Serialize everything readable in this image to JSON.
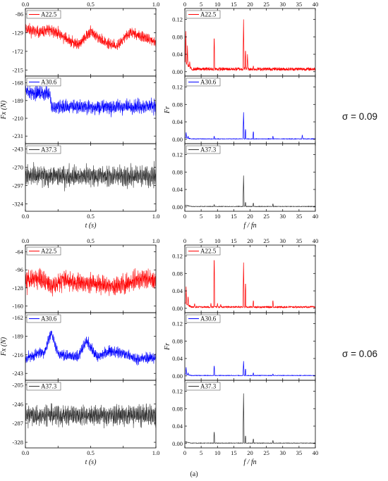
{
  "figure": {
    "caption": "(a)",
    "groups": [
      {
        "id": "g1",
        "sigma_label": "σ = 0.09"
      },
      {
        "id": "g2",
        "sigma_label": "σ = 0.06"
      }
    ]
  },
  "colors": {
    "A22.5": "#ff0000",
    "A30.6": "#0000ff",
    "A37.3": "#333333"
  },
  "chart_data": [
    {
      "type": "line",
      "group": "g1",
      "domain": "time",
      "series_name": "A22.5",
      "xlabel": "",
      "ylabel": "",
      "xlim": [
        0,
        1
      ],
      "ylim": [
        -229,
        -73
      ],
      "yticks": [
        "-86",
        "-129",
        "-172",
        "-215"
      ],
      "xticks_top": [
        "0.0",
        "0.5",
        "1.0"
      ],
      "mean_profile": {
        "x": [
          0,
          0.1,
          0.2,
          0.3,
          0.4,
          0.5,
          0.6,
          0.7,
          0.8,
          0.9,
          1.0
        ],
        "y": [
          -120,
          -128,
          -122,
          -140,
          -158,
          -126,
          -150,
          -162,
          -128,
          -138,
          -152
        ]
      },
      "band_halfwidth": 18
    },
    {
      "type": "line",
      "group": "g1",
      "domain": "time",
      "series_name": "A30.6",
      "xlabel": "",
      "ylabel": "Fx (N)",
      "xlim": [
        0,
        1
      ],
      "ylim": [
        -240,
        -160
      ],
      "yticks": [
        "-168",
        "-189",
        "-210",
        "-231"
      ],
      "mean_profile": {
        "x": [
          0,
          0.1,
          0.19,
          0.2,
          0.4,
          0.6,
          0.8,
          1.0
        ],
        "y": [
          -178,
          -180,
          -181,
          -197,
          -196,
          -197,
          -196,
          -195
        ]
      },
      "band_halfwidth": 12
    },
    {
      "type": "line",
      "group": "g1",
      "domain": "time",
      "series_name": "A37.3",
      "xlabel": "t (s)",
      "ylabel": "",
      "xlim": [
        0,
        1
      ],
      "ylim": [
        -335,
        -235
      ],
      "yticks": [
        "-243",
        "-270",
        "-297",
        "-324"
      ],
      "xticks_bottom": [
        "0.0",
        "0.5",
        "1.0"
      ],
      "mean_profile": {
        "x": [
          0,
          0.5,
          1.0
        ],
        "y": [
          -283,
          -283,
          -283
        ]
      },
      "band_halfwidth": 22
    },
    {
      "type": "line",
      "group": "g1",
      "domain": "frequency",
      "series_name": "A22.5",
      "xlabel": "",
      "ylabel": "",
      "xlim": [
        0,
        40
      ],
      "ylim": [
        -0.01,
        0.145
      ],
      "yticks": [
        "0.12",
        "0.08",
        "0.04",
        "0.00"
      ],
      "xticks_top": [
        "0",
        "5",
        "10",
        "15",
        "20",
        "25",
        "30",
        "35",
        "40"
      ],
      "base": 0.006,
      "peaks": [
        [
          0.3,
          0.1
        ],
        [
          0.8,
          0.06
        ],
        [
          1.5,
          0.025
        ],
        [
          9,
          0.088
        ],
        [
          18,
          0.12
        ],
        [
          18.6,
          0.055
        ],
        [
          19.2,
          0.04
        ],
        [
          21,
          0.015
        ],
        [
          27,
          0.01
        ]
      ]
    },
    {
      "type": "line",
      "group": "g1",
      "domain": "frequency",
      "series_name": "A30.6",
      "xlabel": "",
      "ylabel": "Fr",
      "xlim": [
        0,
        40
      ],
      "ylim": [
        -0.01,
        0.145
      ],
      "yticks": [
        "0.12",
        "0.08",
        "0.04",
        "0.00"
      ],
      "base": 0.001,
      "peaks": [
        [
          0.4,
          0.016
        ],
        [
          1,
          0.008
        ],
        [
          9,
          0.008
        ],
        [
          18,
          0.062
        ],
        [
          18.6,
          0.026
        ],
        [
          21,
          0.02
        ],
        [
          27,
          0.008
        ],
        [
          36,
          0.01
        ]
      ]
    },
    {
      "type": "line",
      "group": "g1",
      "domain": "frequency",
      "series_name": "A37.3",
      "xlabel": "f / fn",
      "ylabel": "",
      "xlim": [
        0,
        40
      ],
      "ylim": [
        -0.01,
        0.145
      ],
      "yticks": [
        "0.12",
        "0.08",
        "0.04",
        "0.00"
      ],
      "xticks_bottom": [
        "0",
        "5",
        "10",
        "15",
        "20",
        "25",
        "30",
        "35",
        "40"
      ],
      "base": 0.001,
      "peaks": [
        [
          9,
          0.006
        ],
        [
          18,
          0.072
        ],
        [
          18.6,
          0.012
        ],
        [
          21,
          0.01
        ],
        [
          27,
          0.008
        ]
      ]
    },
    {
      "type": "line",
      "group": "g2",
      "domain": "time",
      "series_name": "A22.5",
      "xlabel": "",
      "ylabel": "",
      "xlim": [
        0,
        1
      ],
      "ylim": [
        -172,
        -52
      ],
      "yticks": [
        "-64",
        "-96",
        "-128",
        "-160"
      ],
      "xticks_top": [
        "0.0",
        "0.5",
        "1.0"
      ],
      "mean_profile": {
        "x": [
          0,
          0.1,
          0.2,
          0.3,
          0.4,
          0.5,
          0.6,
          0.7,
          0.8,
          0.9,
          1.0
        ],
        "y": [
          -116,
          -110,
          -124,
          -114,
          -118,
          -120,
          -122,
          -126,
          -118,
          -110,
          -116
        ]
      },
      "band_halfwidth": 24
    },
    {
      "type": "line",
      "group": "g2",
      "domain": "time",
      "series_name": "A30.6",
      "xlabel": "",
      "ylabel": "Fx (N)",
      "xlim": [
        0,
        1
      ],
      "ylim": [
        -253,
        -155
      ],
      "yticks": [
        "-162",
        "-189",
        "-216",
        "-243"
      ],
      "mean_profile": {
        "x": [
          0,
          0.15,
          0.2,
          0.25,
          0.4,
          0.47,
          0.55,
          0.65,
          0.75,
          0.85,
          1.0
        ],
        "y": [
          -222,
          -210,
          -182,
          -215,
          -220,
          -196,
          -220,
          -210,
          -214,
          -222,
          -220
        ]
      },
      "band_halfwidth": 11
    },
    {
      "type": "line",
      "group": "g2",
      "domain": "time",
      "series_name": "A37.3",
      "xlabel": "t (s)",
      "ylabel": "",
      "xlim": [
        0,
        1
      ],
      "ylim": [
        -340,
        -195
      ],
      "yticks": [
        "-205",
        "-246",
        "-287",
        "-328"
      ],
      "xticks_bottom": [
        "0.0",
        "0.5",
        "1.0"
      ],
      "mean_profile": {
        "x": [
          0,
          0.5,
          1.0
        ],
        "y": [
          -270,
          -270,
          -270
        ]
      },
      "band_halfwidth": 30
    },
    {
      "type": "line",
      "group": "g2",
      "domain": "frequency",
      "series_name": "A22.5",
      "xlabel": "",
      "ylabel": "",
      "xlim": [
        0,
        40
      ],
      "ylim": [
        -0.01,
        0.145
      ],
      "yticks": [
        "0.12",
        "0.08",
        "0.04",
        "0.00"
      ],
      "xticks_top": [
        "0",
        "5",
        "10",
        "15",
        "20",
        "25",
        "30",
        "35",
        "40"
      ],
      "base": 0.003,
      "peaks": [
        [
          0.4,
          0.05
        ],
        [
          1,
          0.03
        ],
        [
          3,
          0.012
        ],
        [
          8,
          0.012
        ],
        [
          9,
          0.128
        ],
        [
          10,
          0.012
        ],
        [
          11,
          0.01
        ],
        [
          18,
          0.105
        ],
        [
          18.6,
          0.065
        ],
        [
          21,
          0.02
        ],
        [
          27,
          0.02
        ]
      ]
    },
    {
      "type": "line",
      "group": "g2",
      "domain": "frequency",
      "series_name": "A30.6",
      "xlabel": "",
      "ylabel": "Fr",
      "xlim": [
        0,
        40
      ],
      "ylim": [
        -0.01,
        0.145
      ],
      "yticks": [
        "0.12",
        "0.08",
        "0.04",
        "0.00"
      ],
      "base": 0.001,
      "peaks": [
        [
          0.4,
          0.02
        ],
        [
          1,
          0.008
        ],
        [
          9,
          0.026
        ],
        [
          18,
          0.034
        ],
        [
          18.6,
          0.018
        ],
        [
          21,
          0.008
        ],
        [
          27,
          0.005
        ]
      ]
    },
    {
      "type": "line",
      "group": "g2",
      "domain": "frequency",
      "series_name": "A37.3",
      "xlabel": "f / fn",
      "ylabel": "",
      "xlim": [
        0,
        40
      ],
      "ylim": [
        -0.01,
        0.145
      ],
      "yticks": [
        "0.12",
        "0.08",
        "0.04",
        "0.00"
      ],
      "xticks_bottom": [
        "0",
        "5",
        "10",
        "15",
        "20",
        "25",
        "30",
        "35",
        "40"
      ],
      "base": 0.001,
      "peaks": [
        [
          9,
          0.03
        ],
        [
          18,
          0.115
        ],
        [
          18.6,
          0.02
        ],
        [
          21,
          0.012
        ],
        [
          27,
          0.008
        ]
      ]
    }
  ]
}
